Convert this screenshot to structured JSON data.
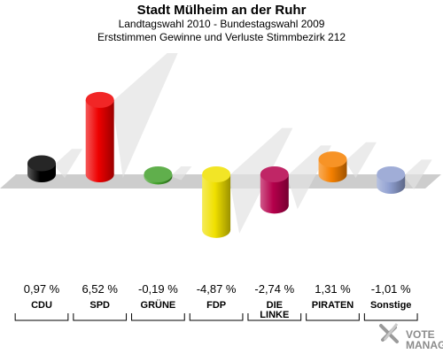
{
  "header": {
    "title": "Stadt Mülheim an der Ruhr",
    "subtitle1": "Landtagswahl 2010 - Bundestagswahl 2009",
    "subtitle2": "Erststimmen Gewinne und Verluste Stimmbezirk 212"
  },
  "logo": {
    "text": "VOTE\nMANAGER"
  },
  "chart_data": {
    "type": "bar",
    "title": "Stadt Mülheim an der Ruhr",
    "subtitle": "Landtagswahl 2010 - Bundestagswahl 2009 / Erststimmen Gewinne und Verluste Stimmbezirk 212",
    "categories": [
      "CDU",
      "SPD",
      "GRÜNE",
      "FDP",
      "DIE LINKE",
      "PIRATEN",
      "Sonstige"
    ],
    "category_labels": [
      [
        "CDU"
      ],
      [
        "SPD"
      ],
      [
        "GRÜNE"
      ],
      [
        "FDP"
      ],
      [
        "DIE",
        "LINKE"
      ],
      [
        "PIRATEN"
      ],
      [
        "Sonstige"
      ]
    ],
    "values": [
      0.97,
      6.52,
      -0.19,
      -4.87,
      -2.74,
      1.31,
      -1.01
    ],
    "value_labels": [
      "0,97 %",
      "6,52 %",
      "-0,19 %",
      "-4,87 %",
      "-2,74 %",
      "1,31 %",
      "-1,01 %"
    ],
    "colors": [
      "#000000",
      "#ee0000",
      "#44a12c",
      "#f0e000",
      "#b5004b",
      "#f58000",
      "#8f9fd0"
    ],
    "unit": "%",
    "grid": false
  }
}
